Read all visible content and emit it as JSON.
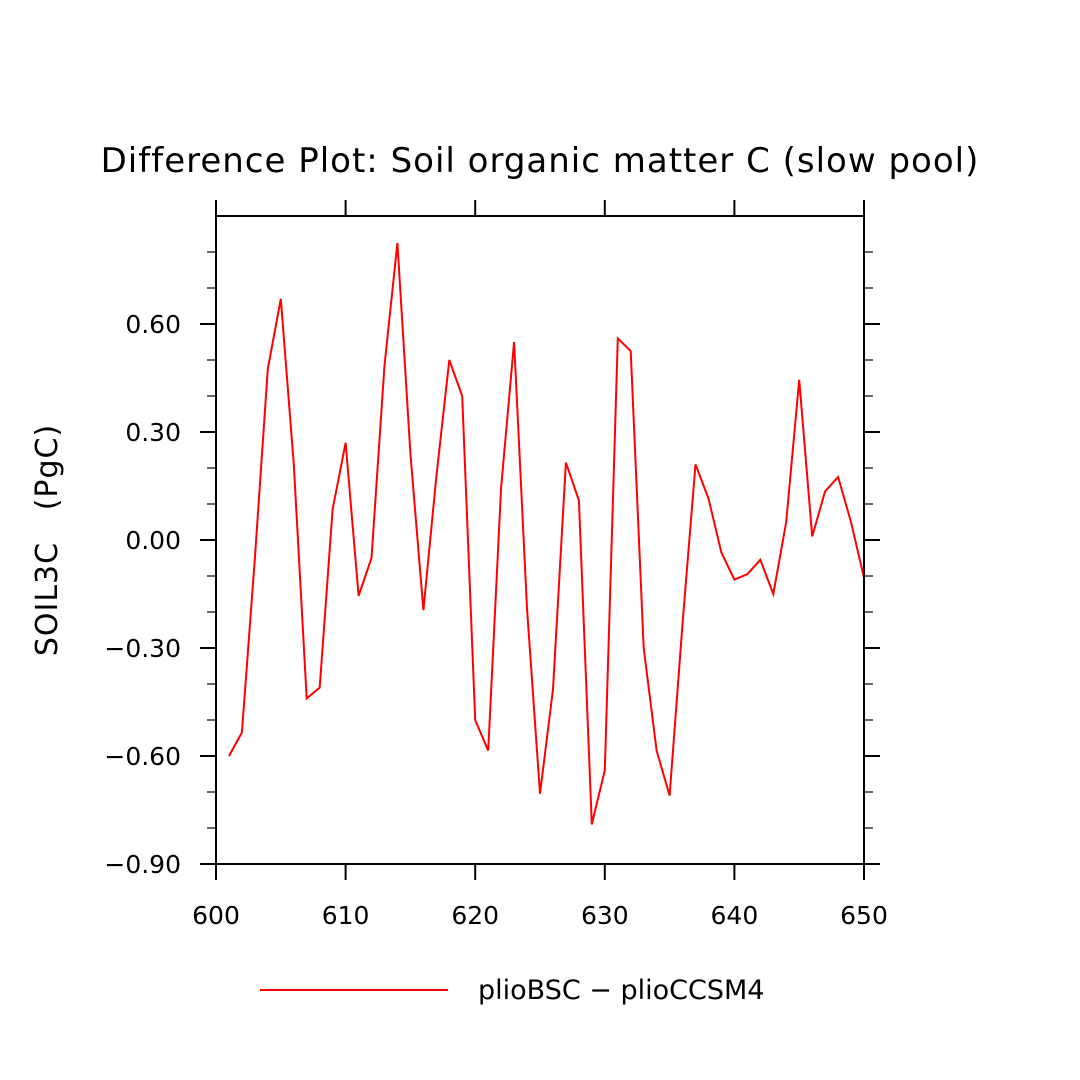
{
  "chart_data": {
    "type": "line",
    "title": "Difference Plot: Soil organic matter C (slow pool)",
    "xlabel": "",
    "ylabel": "SOIL3C   (PgC)",
    "xlim": [
      600,
      650
    ],
    "ylim": [
      -0.9,
      0.9
    ],
    "xticks": [
      600,
      610,
      620,
      630,
      640,
      650
    ],
    "xtick_labels": [
      "600",
      "610",
      "620",
      "630",
      "640",
      "650"
    ],
    "yticks": [
      -0.9,
      -0.6,
      -0.3,
      0.0,
      0.3,
      0.6
    ],
    "ytick_labels": [
      "−0.90",
      "−0.60",
      "−0.30",
      "0.00",
      "0.30",
      "0.60"
    ],
    "grid": false,
    "legend_position": "bottom",
    "series": [
      {
        "name": "plioBSC − plioCCSM4",
        "color": "#ff0000",
        "x": [
          601,
          602,
          603,
          604,
          605,
          606,
          607,
          608,
          609,
          610,
          611,
          612,
          613,
          614,
          615,
          616,
          617,
          618,
          619,
          620,
          621,
          622,
          623,
          624,
          625,
          626,
          627,
          628,
          629,
          630,
          631,
          632,
          633,
          634,
          635,
          636,
          637,
          638,
          639,
          640,
          641,
          642,
          643,
          644,
          645,
          646,
          647,
          648,
          649,
          650
        ],
        "y": [
          -0.6,
          -0.535,
          -0.05,
          0.475,
          0.67,
          0.21,
          -0.44,
          -0.41,
          0.085,
          0.27,
          -0.155,
          -0.05,
          0.485,
          0.825,
          0.24,
          -0.195,
          0.175,
          0.5,
          0.4,
          -0.5,
          -0.585,
          0.145,
          0.55,
          -0.19,
          -0.705,
          -0.415,
          0.215,
          0.11,
          -0.79,
          -0.64,
          0.56,
          0.525,
          -0.3,
          -0.585,
          -0.71,
          -0.23,
          0.21,
          0.115,
          -0.035,
          -0.11,
          -0.095,
          -0.055,
          -0.15,
          0.05,
          0.445,
          0.01,
          0.135,
          0.175,
          0.05,
          -0.105
        ]
      }
    ]
  }
}
